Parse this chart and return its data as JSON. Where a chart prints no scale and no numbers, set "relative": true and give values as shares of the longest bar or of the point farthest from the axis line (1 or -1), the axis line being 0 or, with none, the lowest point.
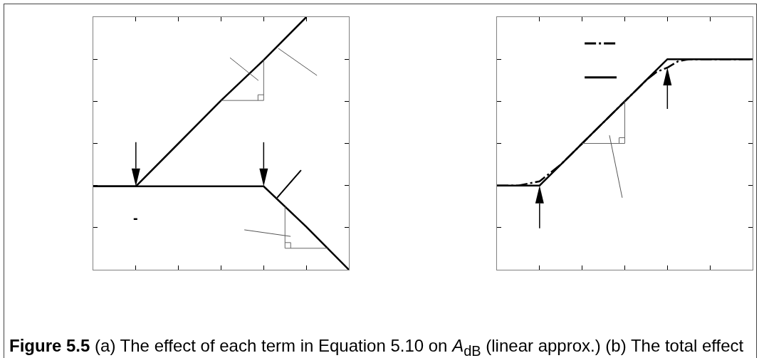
{
  "chart_data": [
    {
      "type": "line",
      "relative": true,
      "categories": [
        null,
        null,
        null,
        null,
        null,
        null,
        null
      ],
      "series": [
        {
          "color": "#000000",
          "values": [
            0.33,
            0.33,
            0.5,
            0.67,
            0.83,
            1,
            null
          ]
        },
        {
          "color": "#000000",
          "values": [
            0.33,
            0.33,
            0.33,
            0.33,
            0.33,
            0.17,
            0
          ]
        }
      ],
      "annotations": [
        "-"
      ]
    },
    {
      "type": "line",
      "relative": true,
      "categories": [
        null,
        null,
        null,
        null,
        null,
        null,
        null,
        null,
        null,
        null,
        null,
        null,
        null,
        null,
        null,
        null,
        null,
        null,
        null,
        null,
        null,
        null,
        null,
        null,
        null
      ],
      "series": [
        {
          "color": "#000000",
          "line_style": "dashdot",
          "values": [
            0.4,
            0.4,
            0.4,
            0.41,
            0.42,
            0.46,
            0.5,
            0.55,
            0.6,
            0.65,
            0.7,
            0.75,
            0.8,
            0.85,
            0.9,
            0.94,
            0.96,
            0.99,
            1,
            1,
            1,
            1,
            1,
            1,
            1
          ]
        },
        {
          "color": "#000000",
          "line_style": "solid",
          "values": [
            0.4,
            0.4,
            0.4,
            0.4,
            0.4,
            0.45,
            0.5,
            0.55,
            0.6,
            0.65,
            0.7,
            0.75,
            0.8,
            0.85,
            0.9,
            0.95,
            1,
            1,
            1,
            1,
            1,
            1,
            1,
            1,
            1
          ]
        }
      ]
    },
    {
      "type": "other",
      "annotations": [
        "Figure 5.5",
        "(a) The effect of each term in Equation 5.10 on A$_{dB}$ (linear approx.) (b) The total effect"
      ]
    }
  ]
}
